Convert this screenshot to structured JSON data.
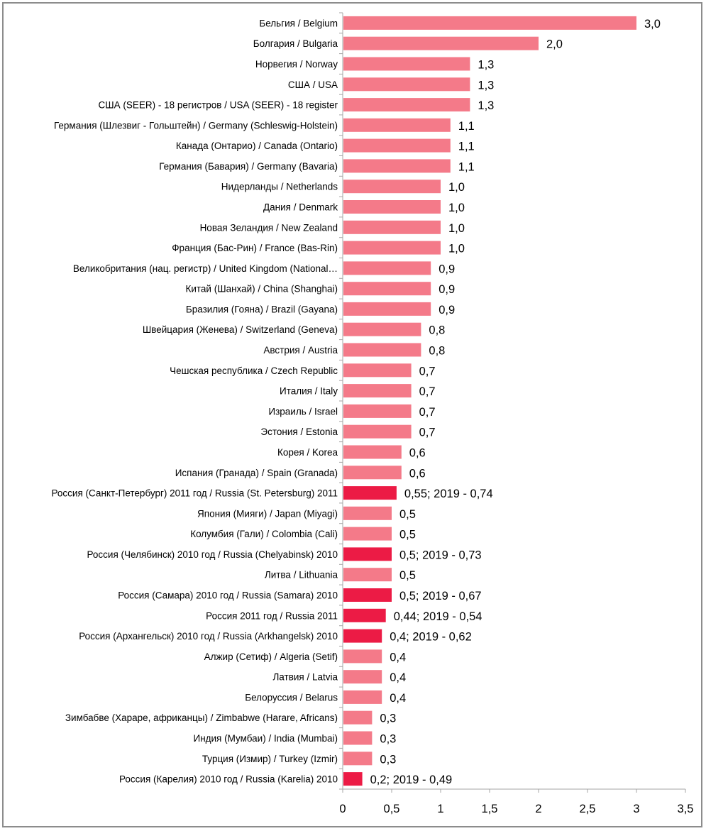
{
  "chart_data": {
    "type": "bar",
    "orientation": "horizontal",
    "title": "",
    "xlabel": "",
    "ylabel": "",
    "xlim": [
      0,
      3.5
    ],
    "x_ticks": [
      "0",
      "0,5",
      "1",
      "1,5",
      "2",
      "2,5",
      "3",
      "3,5"
    ],
    "x_tick_values": [
      0,
      0.5,
      1,
      1.5,
      2,
      2.5,
      3,
      3.5
    ],
    "grid": false,
    "legend": "none",
    "colors": {
      "default": "#f47a89",
      "highlight": "#ec1b45",
      "axis": "#a6a6a6",
      "text": "#000000"
    },
    "categories": [
      "Бельгия / Belgium",
      "Болгария / Bulgaria",
      "Норвегия / Norway",
      "США / USA",
      "США (SEER) - 18 регистров / USA (SEER) - 18 register",
      "Германия (Шлезвиг - Гольштейн) / Germany (Schleswig-Holstein)",
      "Канада (Онтарио) / Canada (Ontario)",
      "Германия (Бавария) / Germany (Bavaria)",
      "Нидерланды / Netherlands",
      "Дания / Denmark",
      "Новая Зеландия / New Zealand",
      "Франция (Бас-Рин) / France (Bas-Rin)",
      "Великобритания (нац. регистр) / United Kingdom (National…",
      "Китай (Шанхай) / China (Shanghai)",
      "Бразилия (Гояна) / Brazil (Gayana)",
      "Швейцария (Женева) / Switzerland (Geneva)",
      "Австрия / Austria",
      "Чешская республика / Czech Republic",
      "Италия / Italy",
      "Израиль / Israel",
      "Эстония / Estonia",
      "Корея / Korea",
      "Испания (Гранада) / Spain (Granada)",
      "Россия (Санкт-Петербург) 2011 год / Russia (St. Petersburg) 2011",
      "Япония (Мияги) / Japan (Miyagi)",
      "Колумбия (Гали) / Colombia (Cali)",
      "Россия (Челябинск) 2010 год / Russia (Chelyabinsk) 2010",
      "Литва / Lithuania",
      "Россия (Самара) 2010 год / Russia (Samara) 2010",
      "Россия 2011 год / Russia 2011",
      "Россия (Архангельск) 2010 год / Russia (Arkhangelsk) 2010",
      "Алжир (Сетиф) / Algeria (Setif)",
      "Латвия / Latvia",
      "Белоруссия / Belarus",
      "Зимбабве (Хараре, африканцы) / Zimbabwe (Harare, Africans)",
      "Индия (Мумбаи) / India (Mumbai)",
      "Турция (Измир) / Turkey (Izmir)",
      "Россия (Карелия) 2010 год / Russia (Karelia) 2010"
    ],
    "values": [
      3.0,
      2.0,
      1.3,
      1.3,
      1.3,
      1.1,
      1.1,
      1.1,
      1.0,
      1.0,
      1.0,
      1.0,
      0.9,
      0.9,
      0.9,
      0.8,
      0.8,
      0.7,
      0.7,
      0.7,
      0.7,
      0.6,
      0.6,
      0.55,
      0.5,
      0.5,
      0.5,
      0.5,
      0.5,
      0.44,
      0.4,
      0.4,
      0.4,
      0.4,
      0.3,
      0.3,
      0.3,
      0.2
    ],
    "data_labels": [
      "3,0",
      "2,0",
      "1,3",
      "1,3",
      "1,3",
      "1,1",
      "1,1",
      "1,1",
      "1,0",
      "1,0",
      "1,0",
      "1,0",
      "0,9",
      "0,9",
      "0,9",
      "0,8",
      "0,8",
      "0,7",
      "0,7",
      "0,7",
      "0,7",
      "0,6",
      "0,6",
      "0,55; 2019 - 0,74",
      "0,5",
      "0,5",
      "0,5; 2019 - 0,73",
      "0,5",
      "0,5; 2019 - 0,67",
      "0,44; 2019 - 0,54",
      "0,4; 2019 - 0,62",
      "0,4",
      "0,4",
      "0,4",
      "0,3",
      "0,3",
      "0,3",
      "0,2; 2019 - 0,49"
    ],
    "highlighted": [
      false,
      false,
      false,
      false,
      false,
      false,
      false,
      false,
      false,
      false,
      false,
      false,
      false,
      false,
      false,
      false,
      false,
      false,
      false,
      false,
      false,
      false,
      false,
      true,
      false,
      false,
      true,
      false,
      true,
      true,
      true,
      false,
      false,
      false,
      false,
      false,
      false,
      true
    ]
  }
}
